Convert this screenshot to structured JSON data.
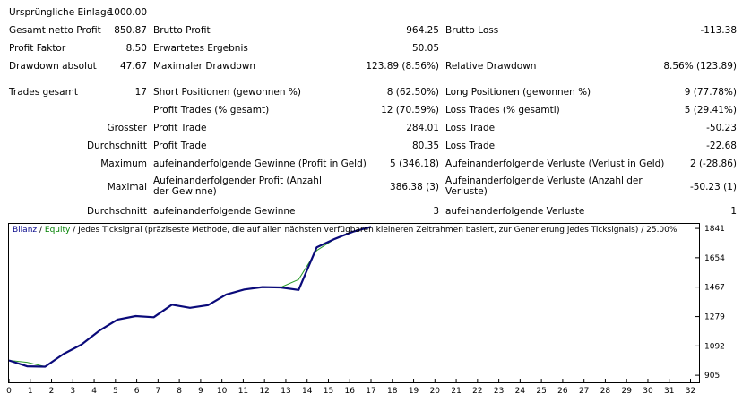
{
  "rows": [
    {
      "top": 7,
      "cells": [
        {
          "key": "einlage_label",
          "text": "Ursprüngliche Einlage"
        },
        {
          "key": "einlage_value",
          "text": "1000.00"
        }
      ]
    }
  ],
  "summary": {
    "einlage_label": "Ursprüngliche Einlage",
    "einlage_value": "1000.00",
    "netto_label": "Gesamt netto Profit",
    "netto_value": "850.87",
    "brutto_profit_label": "Brutto Profit",
    "brutto_profit_value": "964.25",
    "brutto_loss_label": "Brutto Loss",
    "brutto_loss_value": "-113.38",
    "profit_faktor_label": "Profit Faktor",
    "profit_faktor_value": "8.50",
    "erwartetes_label": "Erwartetes Ergebnis",
    "erwartetes_value": "50.05",
    "dd_abs_label": "Drawdown absolut",
    "dd_abs_value": "47.67",
    "dd_max_label": "Maximaler Drawdown",
    "dd_max_value": "123.89 (8.56%)",
    "dd_rel_label": "Relative Drawdown",
    "dd_rel_value": "8.56% (123.89)",
    "trades_label": "Trades gesamt",
    "trades_value": "17",
    "short_label": "Short Positionen (gewonnen %)",
    "short_value": "8 (62.50%)",
    "long_label": "Long Positionen (gewonnen %)",
    "long_value": "9 (77.78%)",
    "profit_trades_label": "Profit Trades (% gesamt)",
    "profit_trades_value": "12 (70.59%)",
    "loss_trades_label": "Loss Trades (% gesamtl)",
    "loss_trades_value": "5 (29.41%)",
    "groesster_label": "Grösster",
    "g_profit_label": "Profit Trade",
    "g_profit_value": "284.01",
    "g_loss_label": "Loss Trade",
    "g_loss_value": "-50.23",
    "durchschnitt_label": "Durchschnitt",
    "d_profit_label": "Profit Trade",
    "d_profit_value": "80.35",
    "d_loss_label": "Loss Trade",
    "d_loss_value": "-22.68",
    "maximum_label": "Maximum",
    "max_win_label": "aufeinanderfolgende Gewinne (Profit in Geld)",
    "max_win_value": "5 (346.18)",
    "max_loss_label": "Aufeinanderfolgende Verluste (Verlust in Geld)",
    "max_loss_value": "2 (-28.86)",
    "maximal_label": "Maximal",
    "mx_profit_label": "Aufeinanderfolgender Profit (Anzahl der Gewinne)",
    "mx_profit_value": "386.38 (3)",
    "mx_loss_label": "Aufeinanderfolgende Verluste (Anzahl der Verluste)",
    "mx_loss_value": "-50.23 (1)",
    "durchschnitt2_label": "Durchschnitt",
    "avg_win_label": "aufeinanderfolgende Gewinne",
    "avg_win_value": "3",
    "avg_loss_label": "aufeinanderfolgende Verluste",
    "avg_loss_value": "1"
  },
  "legend": {
    "balance": "Bilanz",
    "sep1": " / ",
    "equity": "Equity",
    "rest": " / Jedes  Ticksignal (präziseste Methode, die auf allen nächsten verfügbaren kleineren Zeitrahmen basiert, zur Generierung jedes Ticksignals) / 25.00%"
  },
  "chart_data": {
    "type": "line",
    "x_ticks": [
      0,
      1,
      2,
      3,
      4,
      5,
      6,
      7,
      8,
      9,
      10,
      11,
      12,
      13,
      14,
      15,
      16,
      17,
      18,
      19,
      20,
      21,
      22,
      23,
      24,
      25,
      26,
      27,
      28,
      29,
      30,
      31,
      32
    ],
    "y_ticks": [
      1841,
      1654,
      1467,
      1279,
      1092,
      905
    ],
    "xlim": [
      0,
      32.4
    ],
    "ylim": [
      860,
      1870
    ],
    "series": [
      {
        "name": "Bilanz",
        "color": "#0a0a7a",
        "x": [
          0,
          0.85,
          1.7,
          2.55,
          3.4,
          4.25,
          5.1,
          5.95,
          6.8,
          7.65,
          8.5,
          9.35,
          10.2,
          11.05,
          11.9,
          12.75,
          13.6,
          14.45,
          15.3,
          16.15,
          17
        ],
        "y": [
          1000,
          962,
          960,
          1040,
          1100,
          1190,
          1260,
          1282,
          1275,
          1355,
          1335,
          1352,
          1420,
          1452,
          1467,
          1465,
          1449,
          1720,
          1774,
          1820,
          1851
        ]
      },
      {
        "name": "Equity",
        "color": "#2a9a2a",
        "x": [
          0,
          0.85,
          1.7,
          2.55,
          3.4,
          4.25,
          5.1,
          5.95,
          6.8,
          7.65,
          8.5,
          9.35,
          10.2,
          11.05,
          11.9,
          12.75,
          13.6,
          14.45,
          15.3,
          16.15,
          17
        ],
        "y": [
          1000,
          988,
          960,
          1040,
          1100,
          1190,
          1260,
          1282,
          1275,
          1355,
          1335,
          1352,
          1420,
          1452,
          1467,
          1465,
          1515,
          1700,
          1774,
          1820,
          1851
        ]
      }
    ]
  }
}
